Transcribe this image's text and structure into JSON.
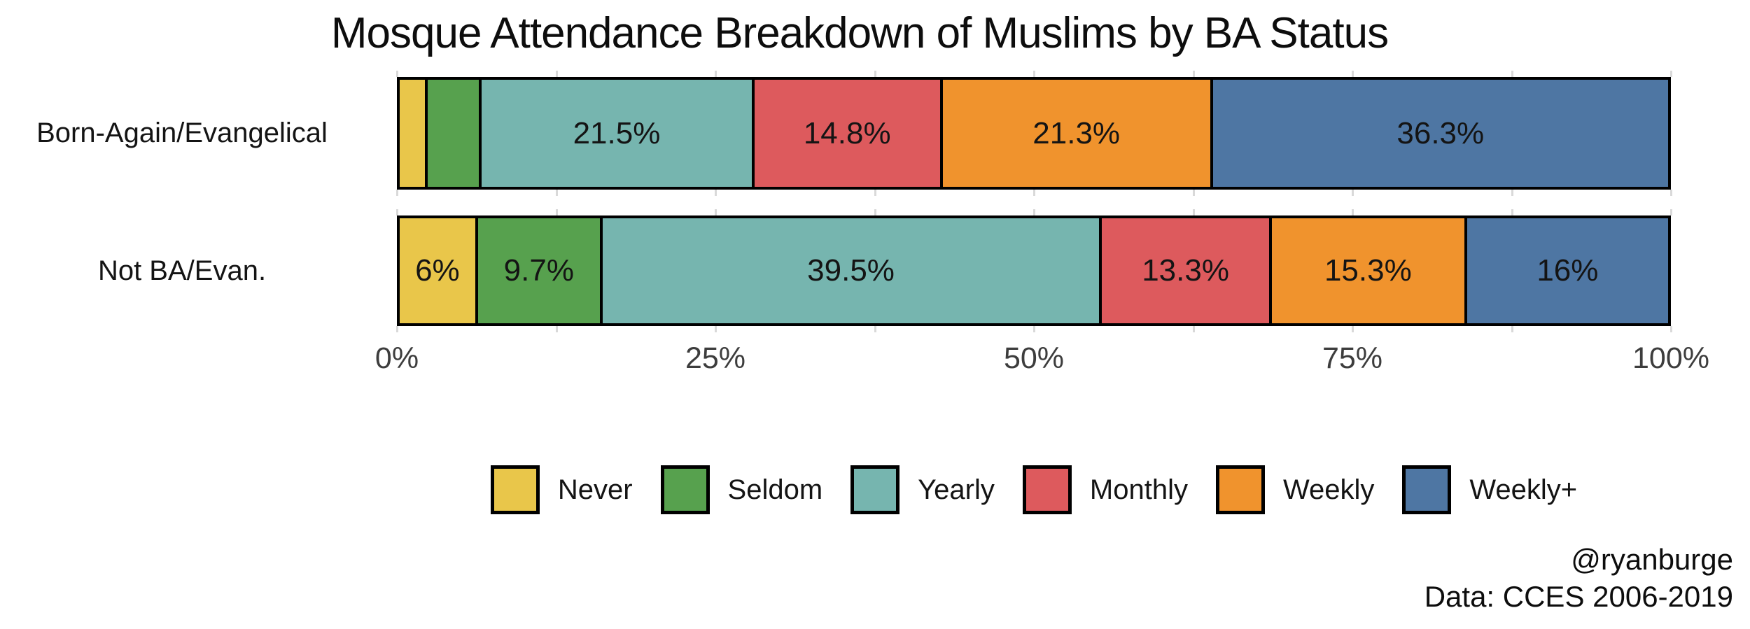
{
  "title": "Mosque Attendance Breakdown of Muslims by BA Status",
  "caption": {
    "author": "@ryanburge",
    "source": "Data: CCES 2006-2019"
  },
  "chart_data": {
    "type": "bar",
    "orientation": "horizontal",
    "stacked": true,
    "unit": "percent",
    "title": "Mosque Attendance Breakdown of Muslims by BA Status",
    "categories": [
      "Born-Again/Evangelical",
      "Not BA/Evan."
    ],
    "series": [
      {
        "name": "Never",
        "color": "#e9c64a",
        "values": [
          2.0,
          6.0
        ],
        "labels": [
          "",
          "6%"
        ]
      },
      {
        "name": "Seldom",
        "color": "#57a14e",
        "values": [
          4.1,
          9.7
        ],
        "labels": [
          "",
          "9.7%"
        ]
      },
      {
        "name": "Yearly",
        "color": "#76b5af",
        "values": [
          21.5,
          39.5
        ],
        "labels": [
          "21.5%",
          "39.5%"
        ]
      },
      {
        "name": "Monthly",
        "color": "#dd5a5d",
        "values": [
          14.8,
          13.3
        ],
        "labels": [
          "14.8%",
          "13.3%"
        ]
      },
      {
        "name": "Weekly",
        "color": "#f0932d",
        "values": [
          21.3,
          15.3
        ],
        "labels": [
          "21.3%",
          "15.3%"
        ]
      },
      {
        "name": "Weekly+",
        "color": "#4e76a3",
        "values": [
          36.3,
          16.0
        ],
        "labels": [
          "36.3%",
          "16%"
        ]
      }
    ],
    "x_ticks": [
      "0%",
      "25%",
      "50%",
      "75%",
      "100%"
    ],
    "x_tick_values": [
      0,
      25,
      50,
      75,
      100
    ],
    "gridline_values": [
      0,
      12.5,
      25,
      37.5,
      50,
      62.5,
      75,
      87.5,
      100
    ],
    "xlim": [
      0,
      100
    ],
    "grid": "light-vertical",
    "legend_position": "bottom-center"
  }
}
